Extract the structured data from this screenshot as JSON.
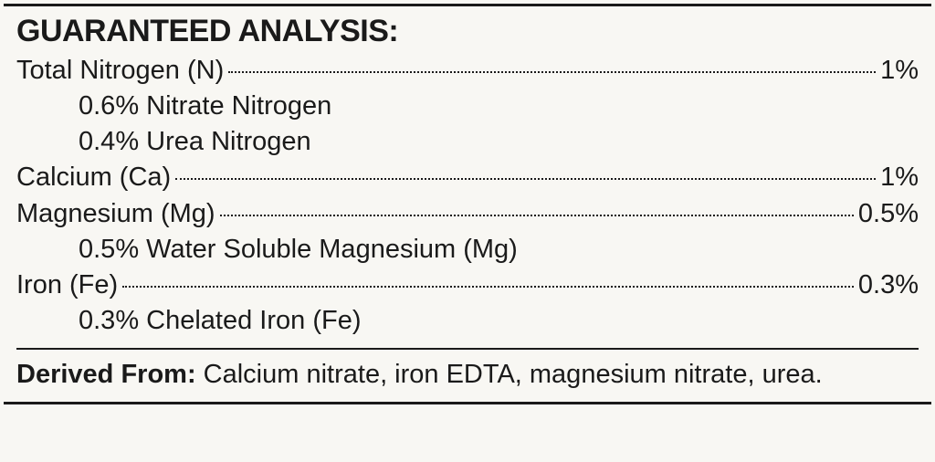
{
  "title": "GUARANTEED ANALYSIS:",
  "nutrients": [
    {
      "label": "Total Nitrogen (N)",
      "value": "1%",
      "sub": [
        "0.6% Nitrate Nitrogen",
        "0.4% Urea Nitrogen"
      ]
    },
    {
      "label": "Calcium (Ca)",
      "value": "1%",
      "sub": []
    },
    {
      "label": "Magnesium (Mg)",
      "value": "0.5%",
      "sub": [
        "0.5% Water Soluble Magnesium (Mg)"
      ]
    },
    {
      "label": "Iron (Fe)",
      "value": "0.3%",
      "sub": [
        "0.3% Chelated Iron (Fe)"
      ]
    }
  ],
  "derived_label": "Derived From:",
  "derived_text": " Calcium nitrate, iron EDTA, magnesium nitrate, urea."
}
